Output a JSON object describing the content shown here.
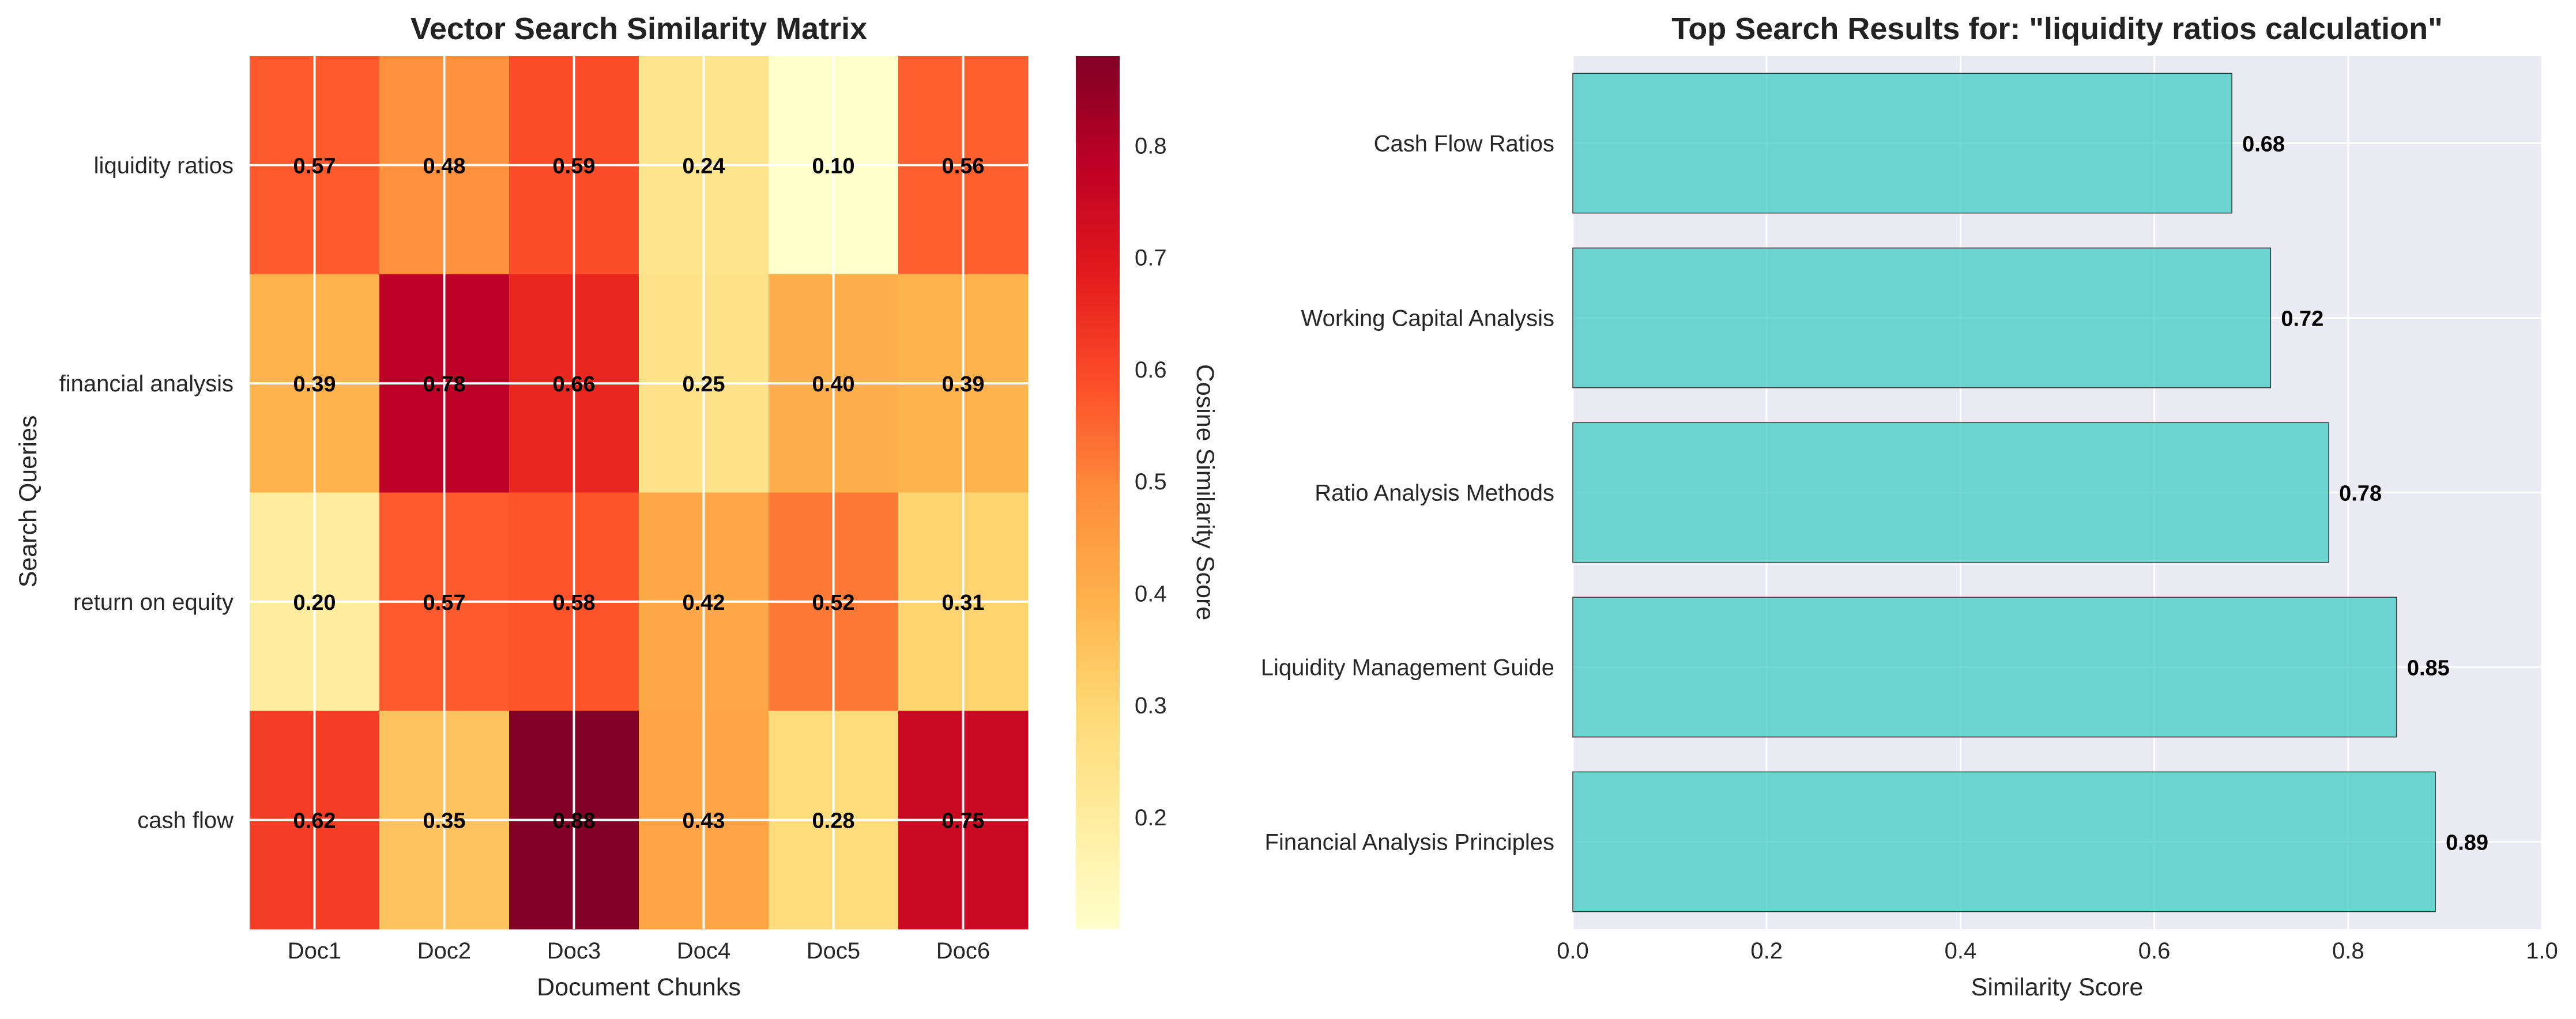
{
  "chart_data": [
    {
      "type": "heatmap",
      "title": "Vector Search Similarity Matrix",
      "xlabel": "Document Chunks",
      "ylabel": "Search Queries",
      "x_categories": [
        "Doc1",
        "Doc2",
        "Doc3",
        "Doc4",
        "Doc5",
        "Doc6"
      ],
      "y_categories": [
        "liquidity ratios",
        "financial analysis",
        "return on equity",
        "cash flow"
      ],
      "values": [
        [
          0.57,
          0.48,
          0.59,
          0.24,
          0.1,
          0.56
        ],
        [
          0.39,
          0.78,
          0.66,
          0.25,
          0.4,
          0.39
        ],
        [
          0.2,
          0.57,
          0.58,
          0.42,
          0.52,
          0.31
        ],
        [
          0.62,
          0.35,
          0.88,
          0.43,
          0.28,
          0.75
        ]
      ],
      "colorscale": "YlOrRd",
      "colorbar": {
        "label": "Cosine Similarity Score",
        "range": [
          0.1,
          0.88
        ],
        "ticks": [
          0.2,
          0.3,
          0.4,
          0.5,
          0.6,
          0.7,
          0.8
        ],
        "tick_labels": [
          "0.2",
          "0.3",
          "0.4",
          "0.5",
          "0.6",
          "0.7",
          "0.8"
        ]
      }
    },
    {
      "type": "bar",
      "orientation": "horizontal",
      "title": "Top Search Results for: \"liquidity ratios calculation\"",
      "xlabel": "Similarity Score",
      "ylabel": "",
      "categories": [
        "Financial Analysis Principles",
        "Liquidity Management Guide",
        "Ratio Analysis Methods",
        "Working Capital Analysis",
        "Cash Flow Ratios"
      ],
      "values": [
        0.89,
        0.85,
        0.78,
        0.72,
        0.68
      ],
      "xlim": [
        0,
        1
      ],
      "x_ticks": [
        0,
        0.2,
        0.4,
        0.6,
        0.8,
        1.0
      ],
      "x_tick_labels": [
        "0.0",
        "0.2",
        "0.4",
        "0.6",
        "0.8",
        "1.0"
      ],
      "bar_color": "#4ECDC4",
      "grid": true
    }
  ]
}
